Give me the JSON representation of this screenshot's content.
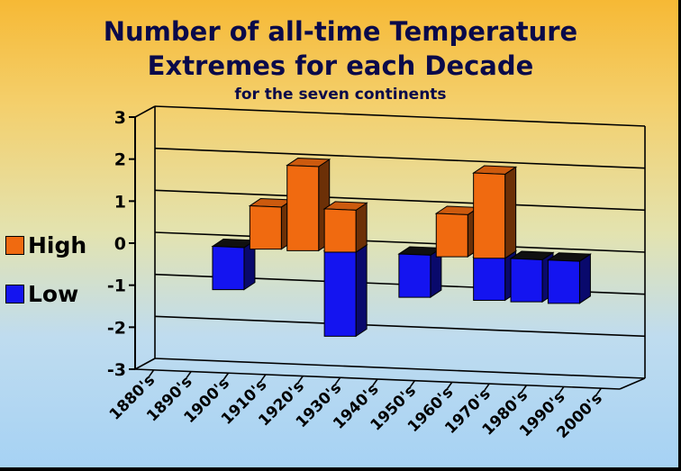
{
  "title": {
    "line1": "Number of all-time Temperature",
    "line2": "Extremes for each Decade",
    "subtitle": "for the seven continents"
  },
  "legend": [
    {
      "label": "High",
      "color": "#f06a10"
    },
    {
      "label": "Low",
      "color": "#1414f0"
    }
  ],
  "colors": {
    "high": "#f06a10",
    "low": "#1414f0"
  },
  "chart_data": {
    "type": "bar",
    "title": "Number of all-time Temperature Extremes for each Decade",
    "subtitle": "for the seven continents",
    "xlabel": "",
    "ylabel": "",
    "categories": [
      "1880's",
      "1890's",
      "1900's",
      "1910's",
      "1920's",
      "1930's",
      "1940's",
      "1950's",
      "1960's",
      "1970's",
      "1980's",
      "1990's",
      "2000's"
    ],
    "series": [
      {
        "name": "High",
        "values": [
          0,
          0,
          0,
          1,
          2,
          1,
          0,
          0,
          1,
          2,
          0,
          0,
          0
        ]
      },
      {
        "name": "Low",
        "values": [
          0,
          0,
          -1,
          0,
          0,
          -2,
          0,
          -1,
          0,
          -1,
          -1,
          -1,
          0
        ]
      }
    ],
    "ylim": [
      -3,
      3
    ],
    "yticks": [
      "-3",
      "-2",
      "-1",
      "0",
      "1",
      "2",
      "3"
    ],
    "grid": true,
    "legend_position": "left",
    "style": "3d"
  }
}
